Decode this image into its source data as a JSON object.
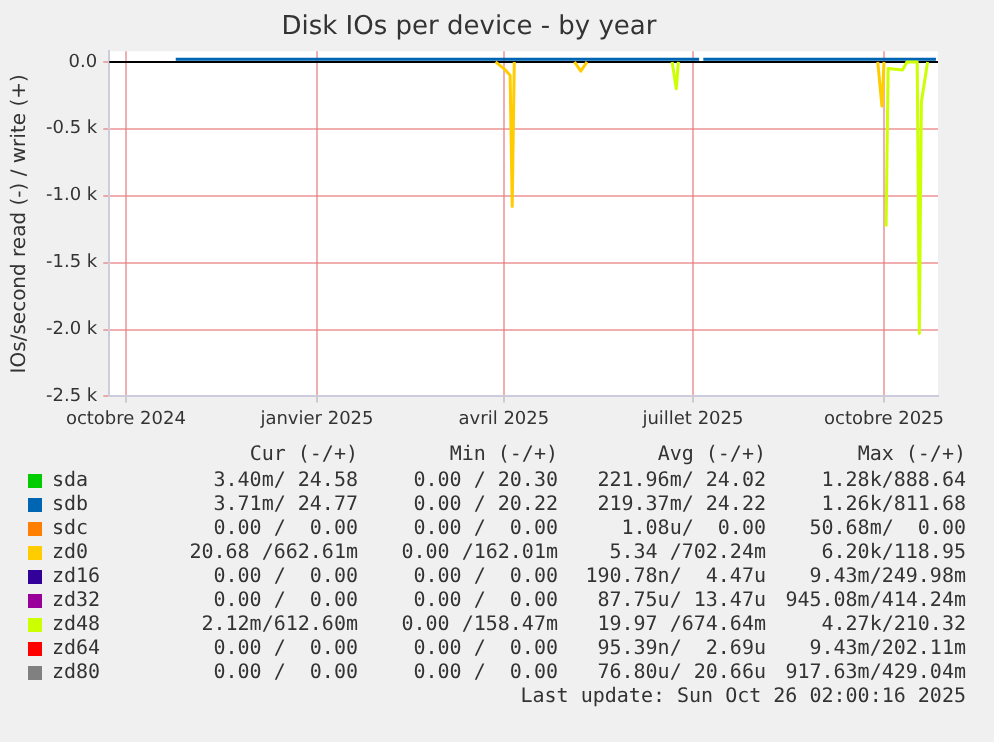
{
  "chart_data": {
    "type": "line",
    "ref_lines": [
      {
        "axis": "y",
        "value": 0,
        "color": "#000000"
      }
    ],
    "title": "Disk IOs per device - by year",
    "ylabel": "IOs/second read (-) / write (+)",
    "xlim": [
      "2024-09-23",
      "2025-10-27"
    ],
    "xticks": [
      {
        "value": "2024-10-01",
        "label": "octobre 2024"
      },
      {
        "value": "2025-01-01",
        "label": "janvier 2025"
      },
      {
        "value": "2025-04-01",
        "label": "avril 2025"
      },
      {
        "value": "2025-07-01",
        "label": "juillet 2025"
      },
      {
        "value": "2025-10-01",
        "label": "octobre 2025"
      }
    ],
    "ylim": [
      -2500,
      80
    ],
    "yticks": [
      {
        "value": -2500,
        "label": "-2.5 k"
      },
      {
        "value": -2000,
        "label": "-2.0 k"
      },
      {
        "value": -1500,
        "label": "-1.5 k"
      },
      {
        "value": -1000,
        "label": "-1.0 k"
      },
      {
        "value": -500,
        "label": "-0.5 k"
      },
      {
        "value": 0,
        "label": "0.0"
      }
    ],
    "grid": true,
    "legend": "bottom",
    "series": [
      {
        "name": "sda",
        "color": "#00cc00"
      },
      {
        "name": "sdb",
        "color": "#0066b3",
        "x": [
          "2024-10-25",
          "2025-07-04",
          "2025-07-05",
          "2025-07-06",
          "2025-10-26"
        ],
        "values": [
          20,
          20,
          null,
          20,
          20
        ]
      },
      {
        "name": "sdc",
        "color": "#ff8000"
      },
      {
        "name": "zd0",
        "color": "#ffcc00",
        "x": [
          "2025-03-28",
          "2025-04-01",
          "2025-04-04",
          "2025-04-05",
          "2025-04-06",
          "2025-04-20",
          "2025-05-05",
          "2025-05-08",
          "2025-05-11",
          "2025-06-01",
          "2025-09-28",
          "2025-09-30",
          "2025-10-01"
        ],
        "values": [
          0,
          -50,
          -100,
          -1080,
          0,
          null,
          0,
          -70,
          0,
          null,
          0,
          -330,
          0
        ]
      },
      {
        "name": "zd16",
        "color": "#330099"
      },
      {
        "name": "zd32",
        "color": "#990099"
      },
      {
        "name": "zd48",
        "color": "#ccff00",
        "x": [
          "2025-06-21",
          "2025-06-23",
          "2025-06-24",
          "2025-07-15",
          "2025-10-02",
          "2025-10-03",
          "2025-10-10",
          "2025-10-12",
          "2025-10-17",
          "2025-10-18",
          "2025-10-19",
          "2025-10-21",
          "2025-10-22"
        ],
        "values": [
          0,
          -200,
          0,
          null,
          -1230,
          -50,
          -60,
          0,
          0,
          -2030,
          -300,
          -100,
          0
        ]
      },
      {
        "name": "zd64",
        "color": "#ff0000"
      },
      {
        "name": "zd80",
        "color": "#808080"
      }
    ],
    "annotations": [
      "Cur (-/+)",
      "Min (-/+)",
      "Avg (-/+)",
      "Max (-/+)",
      "3.40m/ 24.58",
      "0.00 / 20.30",
      "221.96m/ 24.02",
      "1.28k/888.64",
      "3.71m/ 24.77",
      "0.00 / 20.22",
      "219.37m/ 24.22",
      "1.26k/811.68",
      "0.00 /  0.00",
      "0.00 /  0.00",
      "1.08u/  0.00",
      "50.68m/  0.00",
      "20.68 /662.61m",
      "0.00 /162.01m",
      "5.34 /702.24m",
      "6.20k/118.95",
      "0.00 /  0.00",
      "0.00 /  0.00",
      "190.78n/  4.47u",
      "9.43m/249.98m",
      "0.00 /  0.00",
      "0.00 /  0.00",
      "87.75u/ 13.47u",
      "945.08m/414.24m",
      "2.12m/612.60m",
      "0.00 /158.47m",
      "19.97 /674.64m",
      "4.27k/210.32",
      "0.00 /  0.00",
      "0.00 /  0.00",
      "95.39n/  2.69u",
      "9.43m/202.11m",
      "0.00 /  0.00",
      "0.00 /  0.00",
      "76.80u/ 20.66u",
      "917.63m/429.04m",
      "Last update: Sun Oct 26 02:00:16 2025"
    ]
  }
}
